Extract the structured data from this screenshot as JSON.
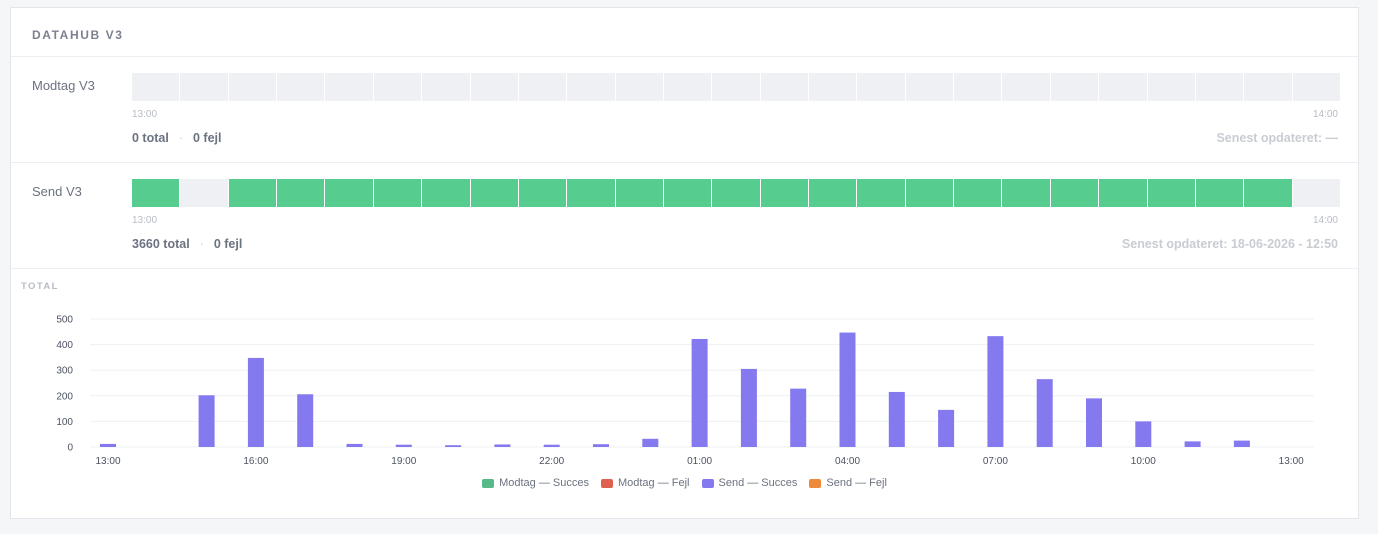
{
  "card": {
    "title": "DATAHUB V3"
  },
  "rows": [
    {
      "label": "Modtag V3",
      "segments": [
        0,
        0,
        0,
        0,
        0,
        0,
        0,
        0,
        0,
        0,
        0,
        0,
        0,
        0,
        0,
        0,
        0,
        0,
        0,
        0,
        0,
        0,
        0,
        0,
        0
      ],
      "tick_start": "13:00",
      "tick_end": "14:00",
      "total": "0 total",
      "errors": "0 fejl",
      "updated": "Senest opdateret: —"
    },
    {
      "label": "Send V3",
      "segments": [
        1,
        0,
        1,
        1,
        1,
        1,
        1,
        1,
        1,
        1,
        1,
        1,
        1,
        1,
        1,
        1,
        1,
        1,
        1,
        1,
        1,
        1,
        1,
        1,
        0
      ],
      "tick_start": "13:00",
      "tick_end": "14:00",
      "total": "3660 total",
      "errors": "0 fejl",
      "updated": "Senest opdateret: 18-06-2026 - 12:50"
    }
  ],
  "colors": {
    "success": "#57cc8f",
    "empty": "#eff0f4"
  },
  "chart_data": {
    "type": "bar",
    "title": "TOTAL",
    "x_tick_labels": [
      "13:00",
      "16:00",
      "19:00",
      "22:00",
      "01:00",
      "04:00",
      "07:00",
      "10:00",
      "13:00"
    ],
    "y_ticks": [
      0,
      100,
      200,
      300,
      400,
      500
    ],
    "ylim": [
      0,
      500
    ],
    "series": [
      {
        "name": "Send — Succes",
        "color": "#8479ef",
        "values": [
          12,
          0,
          202,
          348,
          206,
          12,
          9,
          7,
          10,
          9,
          11,
          32,
          422,
          305,
          228,
          447,
          215,
          145,
          433,
          265,
          190,
          100,
          22,
          25
        ]
      }
    ],
    "legend": [
      {
        "label": "Modtag — Succes",
        "color": "#57b98a"
      },
      {
        "label": "Modtag — Fejl",
        "color": "#e0604f"
      },
      {
        "label": "Send — Succes",
        "color": "#8479ef"
      },
      {
        "label": "Send — Fejl",
        "color": "#ef8a3a"
      }
    ]
  }
}
